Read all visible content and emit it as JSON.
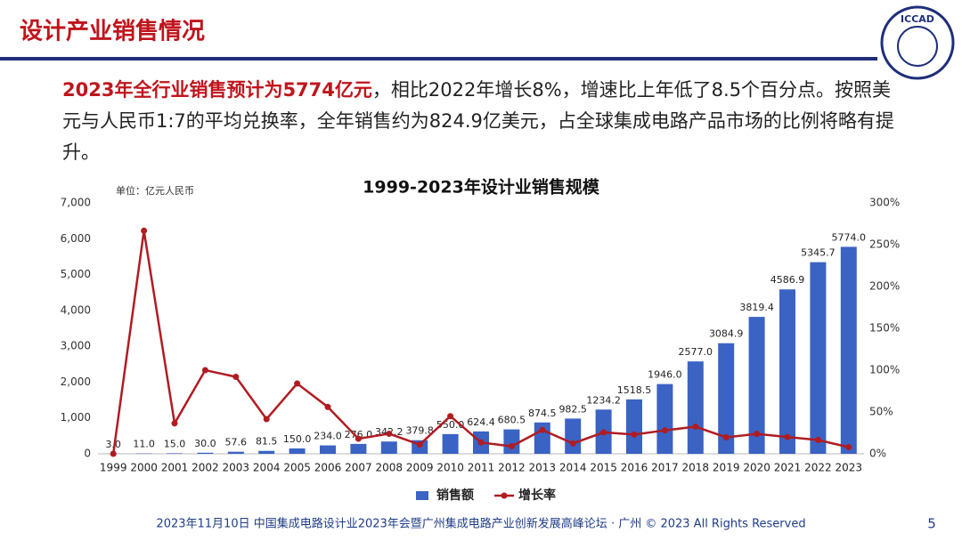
{
  "header": {
    "title": "设计产业销售情况",
    "logo": "ICCAD"
  },
  "body": {
    "highlight": "2023年全行业销售预计为5774亿元",
    "text": "，相比2022年增长8%，增速比上年低了8.5个百分点。按照美元与人民币1:7的平均兑换率，全年销售约为824.9亿美元，占全球集成电路产品市场的比例将略有提升。"
  },
  "chart_data": {
    "type": "bar",
    "title": "1999-2023年设计业销售规模",
    "y_label": "单位：亿元人民币",
    "categories": [
      "1999",
      "2000",
      "2001",
      "2002",
      "2003",
      "2004",
      "2005",
      "2006",
      "2007",
      "2008",
      "2009",
      "2010",
      "2011",
      "2012",
      "2013",
      "2014",
      "2015",
      "2016",
      "2017",
      "2018",
      "2019",
      "2020",
      "2021",
      "2022",
      "2023"
    ],
    "series": [
      {
        "name": "销售额",
        "type": "bar",
        "color": "#3b63c4",
        "values": [
          3,
          11,
          15,
          30,
          57.6,
          81.5,
          150,
          234,
          276,
          342.2,
          379.8,
          550,
          624.4,
          680.5,
          874.5,
          982.5,
          1234.2,
          1518.5,
          1946,
          2577,
          3084.9,
          3819.4,
          4586.9,
          5345.7,
          5774
        ],
        "value_labels": [
          "3.0",
          "11.0",
          "15.0",
          "30.0",
          "57.6",
          "81.5",
          "150.0",
          "234.0",
          "276.0",
          "342.2",
          "379.8",
          "550.0",
          "624.4",
          "680.5",
          "874.5",
          "982.5",
          "1234.2",
          "1518.5",
          "1946.0",
          "2577.0",
          "3084.9",
          "3819.4",
          "4586.9",
          "5345.7",
          "5774.0"
        ]
      },
      {
        "name": "增长率",
        "type": "line",
        "axis": "y2",
        "color": "#b01c22",
        "values": [
          0,
          266.7,
          36.4,
          100,
          92,
          41.5,
          84,
          56,
          18,
          24,
          11,
          45,
          13.5,
          9,
          28.5,
          12.4,
          25.6,
          23,
          28,
          32.4,
          19.7,
          23.8,
          20.1,
          16.5,
          8
        ]
      }
    ],
    "ylim": [
      0,
      7000
    ],
    "yticks": [
      0,
      {
        "value": 1000,
        "label": "1,000"
      },
      {
        "value": 2000,
        "label": "2,000"
      },
      {
        "value": 3000,
        "label": "3,000"
      },
      {
        "value": 4000,
        "label": "4,000"
      },
      {
        "value": 5000,
        "label": "5,000"
      },
      {
        "value": 6000,
        "label": "6,000"
      },
      {
        "value": 7000,
        "label": "7,000"
      }
    ],
    "y2lim": [
      0,
      300
    ],
    "y2ticks": [
      {
        "value": 0,
        "label": "0%"
      },
      {
        "value": 50,
        "label": "50%"
      },
      {
        "value": 100,
        "label": "100%"
      },
      {
        "value": 150,
        "label": "150%"
      },
      {
        "value": 200,
        "label": "200%"
      },
      {
        "value": 250,
        "label": "250%"
      },
      {
        "value": 300,
        "label": "300%"
      }
    ],
    "grid": false
  },
  "footer": {
    "text": "2023年11月10日 中国集成电路设计业2023年会暨广州集成电路产业创新发展高峰论坛 · 广州 © 2023 All Rights Reserved",
    "page": "5"
  }
}
